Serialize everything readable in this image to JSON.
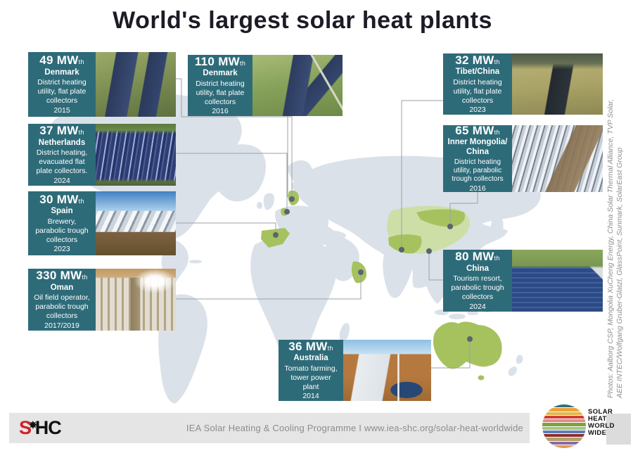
{
  "title": "World's largest solar heat plants",
  "plants": [
    {
      "power": "49 MW",
      "power_sub": "th",
      "country": "Denmark",
      "description": "District heating\nutility, flat plate\ncollectors",
      "year": "2015"
    },
    {
      "power": "37 MW",
      "power_sub": "th",
      "country": "Netherlands",
      "description": "District heating,\nevacuated flat\nplate collectors.",
      "year": "2024"
    },
    {
      "power": "30 MW",
      "power_sub": "th",
      "country": "Spain",
      "description": "Brewery,\nparabolic trough\ncollectors",
      "year": "2023"
    },
    {
      "power": "330 MW",
      "power_sub": "th",
      "country": "Oman",
      "description": "Oil field operator,\nparabolic trough\ncollectors",
      "year": "2017/2019"
    },
    {
      "power": "110 MW",
      "power_sub": "th",
      "country": "Denmark",
      "description": "District heating\nutility, flat plate\ncollectors",
      "year": "2016"
    },
    {
      "power": "32 MW",
      "power_sub": "th",
      "country": "Tibet/China",
      "description": "District heating\nutility, flat plate\ncollectors",
      "year": "2023"
    },
    {
      "power": "65 MW",
      "power_sub": "th",
      "country": "Inner Mongolia/\nChina",
      "description": "District heating\nutility, parabolic\ntrough collectors",
      "year": "2016"
    },
    {
      "power": "80 MW",
      "power_sub": "th",
      "country": "China",
      "description": "Tourism resort,\nparabolic trough\ncollectors",
      "year": "2024"
    },
    {
      "power": "36 MW",
      "power_sub": "th",
      "country": "Australia",
      "description": "Tomato farming,\ntower power\nplant",
      "year": "2014"
    }
  ],
  "credits": {
    "line1": "Photos: Aalborg CSP, Mongolia XuCheng Energy, China Solar Thermal Alliance, TVP Solar,",
    "line2": "AEE INTEC/Wolfgang Gruber-Glatzl, GlassPoint, Sunmark, SolarEast Group"
  },
  "footer": {
    "shc_s": "S",
    "shc_star": "✸",
    "shc_hc": "HC",
    "text": "IEA Solar Heating & Cooling Programme I www.iea-shc.org/solar-heat-worldwide",
    "shw_text": "SOLAR\nHEAT\nWORLD\nWIDE",
    "shw_stripe_colors": [
      "#2f6f7a",
      "#e9a13b",
      "#e3b54a",
      "#cf3f34",
      "#e08a8a",
      "#7fa33c",
      "#a9c473",
      "#5b7fb5",
      "#8b2e2e",
      "#b0a06a",
      "#8a6aa5",
      "#e29a4e"
    ]
  },
  "colors": {
    "card_teal": "#2e6b79",
    "map_land": "#dbe1e9",
    "highlight_green": "#a6c25f",
    "china_light_green": "#cddfa6",
    "connector_gray": "#9aa2a9",
    "location_dot": "#5b6470",
    "shc_red": "#d22027"
  }
}
